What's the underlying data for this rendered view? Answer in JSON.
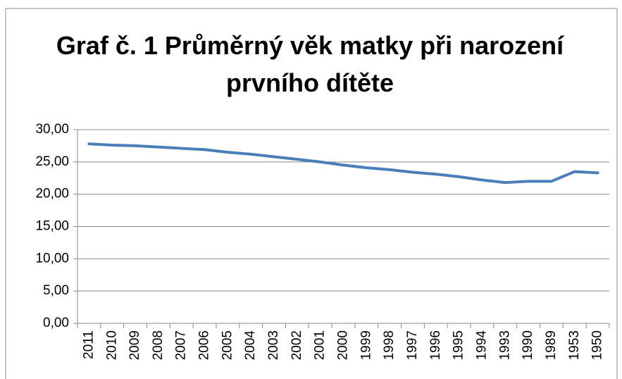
{
  "chart_data": {
    "type": "line",
    "title": "Graf č. 1 Průměrný věk matky při narození prvního dítěte",
    "categories": [
      "2011",
      "2010",
      "2009",
      "2008",
      "2007",
      "2006",
      "2005",
      "2004",
      "2003",
      "2002",
      "2001",
      "2000",
      "1999",
      "1998",
      "1997",
      "1996",
      "1995",
      "1994",
      "1993",
      "1990",
      "1989",
      "1953",
      "1950"
    ],
    "series": [
      {
        "color": "#4a7ebb",
        "values": [
          27.8,
          27.6,
          27.5,
          27.3,
          27.1,
          26.9,
          26.5,
          26.2,
          25.8,
          25.4,
          25.0,
          24.5,
          24.1,
          23.8,
          23.4,
          23.1,
          22.7,
          22.2,
          21.8,
          22.0,
          22.0,
          23.5,
          23.3
        ]
      }
    ],
    "ylim": [
      0,
      30
    ],
    "yticks": [
      {
        "value": 0,
        "label": "0,00"
      },
      {
        "value": 5,
        "label": "5,00"
      },
      {
        "value": 10,
        "label": "10,00"
      },
      {
        "value": 15,
        "label": "15,00"
      },
      {
        "value": 20,
        "label": "20,00"
      },
      {
        "value": 25,
        "label": "25,00"
      },
      {
        "value": 30,
        "label": "30,00"
      }
    ],
    "grid": true
  }
}
